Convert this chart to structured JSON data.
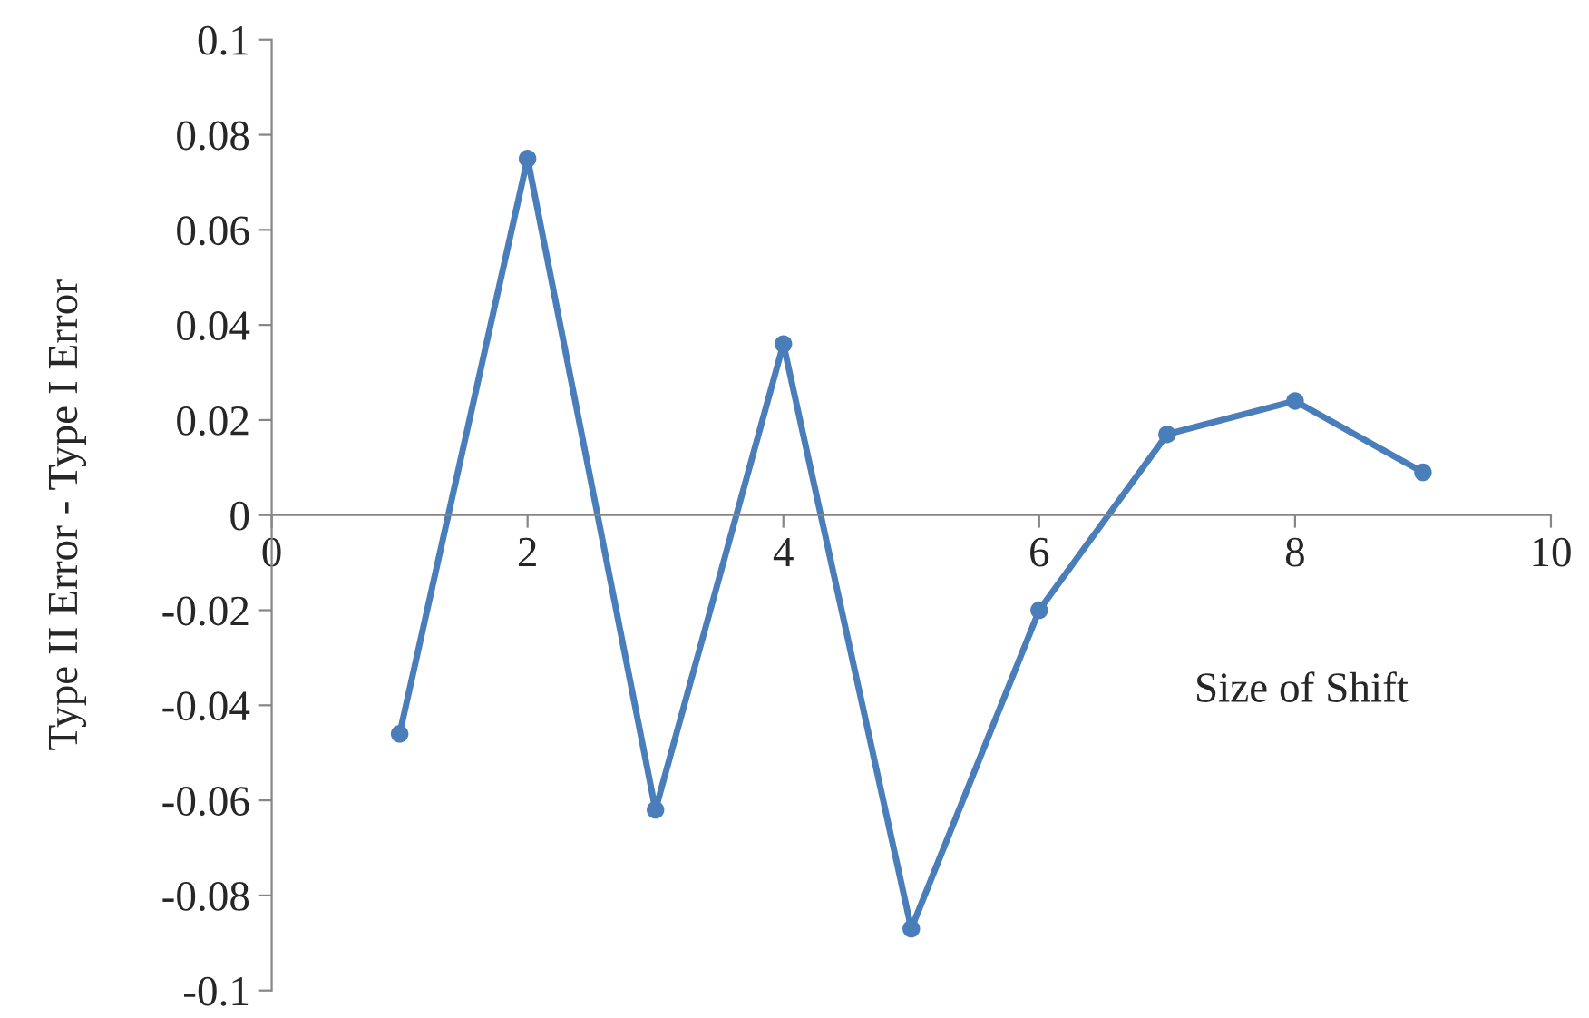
{
  "chart_data": {
    "type": "line",
    "xlabel": "Size of Shift",
    "ylabel": "Type II Error - Type I Error",
    "x": [
      1,
      2,
      3,
      4,
      5,
      6,
      7,
      8,
      9
    ],
    "series": [
      {
        "color": "#4a7ebb",
        "values": [
          -0.046,
          0.075,
          -0.062,
          0.036,
          -0.087,
          -0.02,
          0.017,
          0.024,
          0.009
        ]
      }
    ],
    "xlim": [
      0,
      10
    ],
    "xticks": [
      0,
      2,
      4,
      6,
      8,
      10
    ],
    "ylim": [
      -0.1,
      0.1
    ],
    "yticks": [
      -0.1,
      -0.08,
      -0.06,
      -0.04,
      -0.02,
      0,
      0.02,
      0.04,
      0.06,
      0.08,
      0.1
    ],
    "grid": false,
    "legend": false,
    "marker": "circle",
    "line_style": "solid"
  }
}
